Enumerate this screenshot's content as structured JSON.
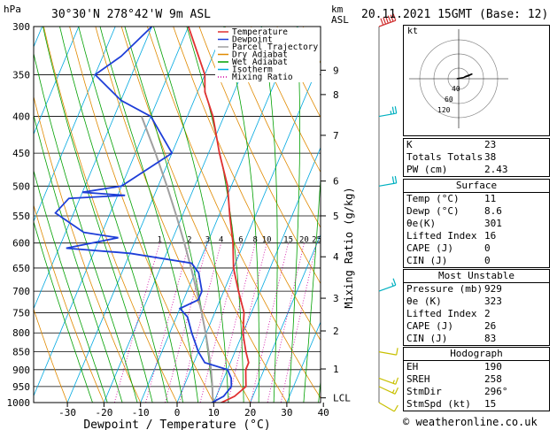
{
  "header": {
    "location": "30°30'N  278°42'W  9m  ASL",
    "datetime": "20.11.2021  15GMT  (Base: 12)",
    "hpa_label": "hPa",
    "km_label": "km",
    "asl_label": "ASL"
  },
  "legend": [
    "Temperature",
    "Dewpoint",
    "Parcel Trajectory",
    "Dry Adiabat",
    "Wet Adiabat",
    "Isotherm",
    "Mixing Ratio"
  ],
  "colors": {
    "temperature": "#e03030",
    "dewpoint": "#1e3ed8",
    "parcel": "#a0a0a0",
    "dry_adiabat": "#e08a00",
    "wet_adiabat": "#00a000",
    "isotherm": "#00a8e0",
    "mixing_ratio": "#d000a0",
    "wind": "#00b0c0"
  },
  "chart_data": {
    "type": "skewt",
    "xlabel": "Dewpoint / Temperature (°C)",
    "ylabel_right": "Mixing Ratio (g/kg)",
    "x_ticks": [
      -30,
      -20,
      -10,
      0,
      10,
      20,
      30,
      40
    ],
    "pressure_levels": [
      300,
      350,
      400,
      450,
      500,
      550,
      600,
      650,
      700,
      750,
      800,
      850,
      900,
      950,
      1000
    ],
    "km_ticks": [
      {
        "km": 9,
        "p": 345
      },
      {
        "km": 8,
        "p": 373
      },
      {
        "km": 7,
        "p": 425
      },
      {
        "km": 6,
        "p": 492
      },
      {
        "km": 5,
        "p": 550
      },
      {
        "km": 4,
        "p": 627
      },
      {
        "km": 3,
        "p": 716
      },
      {
        "km": 2,
        "p": 795
      },
      {
        "km": 1,
        "p": 898
      },
      {
        "km": "LCL",
        "p": 985
      }
    ],
    "mixing_ratio_labels": [
      1,
      2,
      3,
      4,
      6,
      8,
      10,
      15,
      20,
      25
    ],
    "temperature": [
      {
        "p": 1008,
        "t": 11
      },
      {
        "p": 980,
        "t": 15
      },
      {
        "p": 950,
        "t": 17
      },
      {
        "p": 925,
        "t": 16
      },
      {
        "p": 900,
        "t": 15
      },
      {
        "p": 880,
        "t": 15
      },
      {
        "p": 850,
        "t": 13
      },
      {
        "p": 800,
        "t": 10
      },
      {
        "p": 750,
        "t": 8
      },
      {
        "p": 700,
        "t": 4
      },
      {
        "p": 650,
        "t": 0
      },
      {
        "p": 600,
        "t": -3
      },
      {
        "p": 550,
        "t": -7
      },
      {
        "p": 500,
        "t": -11
      },
      {
        "p": 450,
        "t": -17
      },
      {
        "p": 400,
        "t": -23
      },
      {
        "p": 370,
        "t": -28
      },
      {
        "p": 350,
        "t": -30
      },
      {
        "p": 300,
        "t": -40
      }
    ],
    "dewpoint": [
      {
        "p": 1008,
        "t": 8.6
      },
      {
        "p": 980,
        "t": 12
      },
      {
        "p": 950,
        "t": 13
      },
      {
        "p": 925,
        "t": 12
      },
      {
        "p": 900,
        "t": 10
      },
      {
        "p": 880,
        "t": 3
      },
      {
        "p": 850,
        "t": 0
      },
      {
        "p": 800,
        "t": -4
      },
      {
        "p": 760,
        "t": -7
      },
      {
        "p": 740,
        "t": -10
      },
      {
        "p": 720,
        "t": -6
      },
      {
        "p": 700,
        "t": -6
      },
      {
        "p": 660,
        "t": -9
      },
      {
        "p": 640,
        "t": -12
      },
      {
        "p": 620,
        "t": -30
      },
      {
        "p": 610,
        "t": -48
      },
      {
        "p": 590,
        "t": -35
      },
      {
        "p": 580,
        "t": -45
      },
      {
        "p": 545,
        "t": -55
      },
      {
        "p": 520,
        "t": -53
      },
      {
        "p": 515,
        "t": -38
      },
      {
        "p": 510,
        "t": -50
      },
      {
        "p": 500,
        "t": -40
      },
      {
        "p": 450,
        "t": -30
      },
      {
        "p": 400,
        "t": -40
      },
      {
        "p": 380,
        "t": -50
      },
      {
        "p": 350,
        "t": -60
      },
      {
        "p": 330,
        "t": -55
      },
      {
        "p": 300,
        "t": -50
      }
    ],
    "parcel": [
      {
        "p": 1008,
        "t": 11
      },
      {
        "p": 985,
        "t": 9.2
      },
      {
        "p": 950,
        "t": 7.8
      },
      {
        "p": 900,
        "t": 5.5
      },
      {
        "p": 850,
        "t": 2.8
      },
      {
        "p": 800,
        "t": -0.2
      },
      {
        "p": 750,
        "t": -3.6
      },
      {
        "p": 700,
        "t": -7.4
      },
      {
        "p": 650,
        "t": -11.6
      },
      {
        "p": 600,
        "t": -16.3
      },
      {
        "p": 550,
        "t": -21.6
      },
      {
        "p": 500,
        "t": -27.6
      },
      {
        "p": 450,
        "t": -34.5
      },
      {
        "p": 400,
        "t": -42.5
      }
    ],
    "wind_barbs": [
      {
        "p": 300,
        "dir": 250,
        "spd": 60
      },
      {
        "p": 400,
        "dir": 260,
        "spd": 25
      },
      {
        "p": 500,
        "dir": 260,
        "spd": 20
      },
      {
        "p": 700,
        "dir": 250,
        "spd": 15
      },
      {
        "p": 850,
        "dir": 280,
        "spd": 10
      },
      {
        "p": 925,
        "dir": 290,
        "spd": 15
      },
      {
        "p": 950,
        "dir": 295,
        "spd": 15
      },
      {
        "p": 1000,
        "dir": 300,
        "spd": 10
      }
    ]
  },
  "hodograph": {
    "label": "kt",
    "ring_labels": [
      "40",
      "60",
      "120"
    ],
    "points": [
      {
        "u": -2,
        "v": 0
      },
      {
        "u": 4,
        "v": 1
      },
      {
        "u": 10,
        "v": 3
      },
      {
        "u": 14,
        "v": 5
      },
      {
        "u": 6,
        "v": 2
      }
    ]
  },
  "indices": {
    "basic": [
      {
        "label": "K",
        "value": "23"
      },
      {
        "label": "Totals Totals",
        "value": "38"
      },
      {
        "label": "PW (cm)",
        "value": "2.43"
      }
    ],
    "surface_title": "Surface",
    "surface": [
      {
        "label": "Temp (°C)",
        "value": "11"
      },
      {
        "label": "Dewp (°C)",
        "value": "8.6"
      },
      {
        "label": "θe(K)",
        "value": "301"
      },
      {
        "label": "Lifted Index",
        "value": "16"
      },
      {
        "label": "CAPE (J)",
        "value": "0"
      },
      {
        "label": "CIN (J)",
        "value": "0"
      }
    ],
    "unstable_title": "Most Unstable",
    "unstable": [
      {
        "label": "Pressure (mb)",
        "value": "929"
      },
      {
        "label": "θe (K)",
        "value": "323"
      },
      {
        "label": "Lifted Index",
        "value": "2"
      },
      {
        "label": "CAPE (J)",
        "value": "26"
      },
      {
        "label": "CIN (J)",
        "value": "83"
      }
    ],
    "hodo_title": "Hodograph",
    "hodo": [
      {
        "label": "EH",
        "value": "190"
      },
      {
        "label": "SREH",
        "value": "258"
      },
      {
        "label": "StmDir",
        "value": "296°"
      },
      {
        "label": "StmSpd (kt)",
        "value": "15"
      }
    ]
  },
  "credit": "© weatheronline.co.uk"
}
